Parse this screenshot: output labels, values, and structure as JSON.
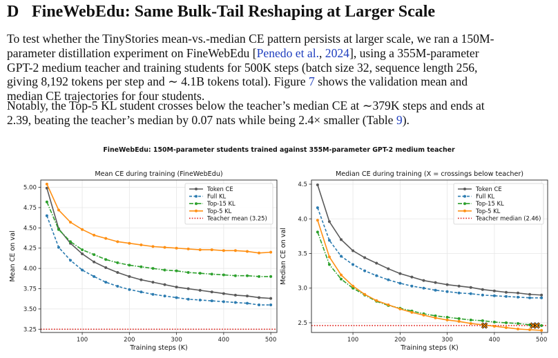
{
  "section": {
    "number": "D",
    "title": "FineWebEdu: Same Bulk-Tail Reshaping at Larger Scale"
  },
  "paragraph1": {
    "l1": "To test whether the TinyStories mean-vs.-median CE pattern persists at larger scale, we ran a 150M-",
    "l2a": "parameter distillation experiment on FineWebEdu [",
    "cite_author": "Penedo et al.",
    "l2b": ", ",
    "cite_year": "2024",
    "l2c": "], using a 355M-parameter",
    "l3": "GPT-2 medium teacher and training students for 500K steps (batch size 32, sequence length 256,",
    "l4a": "giving 8,192 tokens per step and ∼ 4.1B tokens total).  Figure ",
    "fig_ref": "7",
    "l4b": " shows the validation mean and",
    "l5": "median CE trajectories for four students."
  },
  "paragraph2": {
    "l1": "Notably, the Top-5 KL student crosses below the teacher’s median CE at ∼379K steps and ends at",
    "l2a": "2.39, beating the teacher’s median by 0.07 nats while being 2.4× smaller (Table ",
    "table_ref": "9",
    "l2b": ")."
  },
  "figure": {
    "suptitle": "FineWebEdu: 150M-parameter students trained against 355M-parameter GPT-2 medium teacher"
  },
  "colors": {
    "token": "#595959",
    "full": "#2b7bb0",
    "top15": "#2ca02c",
    "top5": "#ff9014",
    "teacher": "#e0201b",
    "grid": "#e6e6e6",
    "crossing_marker": "#ff8c00"
  },
  "chart_data": [
    {
      "type": "line",
      "title": "Mean CE during training (FineWebEdu)",
      "xlabel": "Training steps (K)",
      "ylabel": "Mean CE on val",
      "xlim": [
        12,
        513
      ],
      "ylim": [
        3.21,
        5.09
      ],
      "xticks": [
        100,
        200,
        300,
        400,
        500
      ],
      "yticks": [
        3.25,
        3.5,
        3.75,
        4.0,
        4.25,
        4.5,
        4.75,
        5.0
      ],
      "ytick_decimals": 2,
      "grid": true,
      "legend_position": "top-right",
      "x": [
        25,
        50,
        75,
        100,
        125,
        150,
        175,
        200,
        225,
        250,
        275,
        300,
        325,
        350,
        375,
        400,
        425,
        450,
        475,
        500
      ],
      "series": [
        {
          "name": "Token CE",
          "color_key": "token",
          "style": "solid",
          "marker": "circle",
          "values": [
            4.99,
            4.49,
            4.31,
            4.18,
            4.08,
            4.01,
            3.95,
            3.9,
            3.86,
            3.83,
            3.8,
            3.77,
            3.75,
            3.73,
            3.71,
            3.69,
            3.67,
            3.66,
            3.64,
            3.63
          ]
        },
        {
          "name": "Full KL",
          "color_key": "full",
          "style": "dashed",
          "marker": "circle",
          "values": [
            4.65,
            4.26,
            4.1,
            3.98,
            3.9,
            3.83,
            3.78,
            3.74,
            3.71,
            3.68,
            3.66,
            3.64,
            3.62,
            3.61,
            3.6,
            3.59,
            3.58,
            3.57,
            3.55,
            3.55
          ]
        },
        {
          "name": "Top-15 KL",
          "color_key": "top15",
          "style": "dashdot",
          "marker": "circle",
          "values": [
            4.82,
            4.48,
            4.33,
            4.23,
            4.17,
            4.11,
            4.07,
            4.04,
            4.02,
            4.0,
            3.98,
            3.97,
            3.95,
            3.94,
            3.93,
            3.92,
            3.91,
            3.91,
            3.9,
            3.9
          ]
        },
        {
          "name": "Top-5 KL",
          "color_key": "top5",
          "style": "solid",
          "marker": "circle",
          "values": [
            5.04,
            4.72,
            4.57,
            4.48,
            4.41,
            4.37,
            4.33,
            4.31,
            4.29,
            4.27,
            4.26,
            4.25,
            4.24,
            4.23,
            4.23,
            4.22,
            4.22,
            4.21,
            4.19,
            4.2
          ]
        }
      ],
      "reference_line": {
        "name": "Teacher mean (3.25)",
        "y": 3.25,
        "color_key": "teacher",
        "style": "dotted"
      }
    },
    {
      "type": "line",
      "title": "Median CE during training (X = crossings below teacher)",
      "xlabel": "Training steps (K)",
      "ylabel": "Median CE on val",
      "xlim": [
        12,
        513
      ],
      "ylim": [
        2.36,
        4.56
      ],
      "xticks": [
        100,
        200,
        300,
        400,
        500
      ],
      "yticks": [
        2.5,
        3.0,
        3.5,
        4.0,
        4.5
      ],
      "ytick_decimals": 1,
      "grid": true,
      "legend_position": "top-right",
      "x": [
        25,
        50,
        75,
        100,
        125,
        150,
        175,
        200,
        225,
        250,
        275,
        300,
        325,
        350,
        375,
        400,
        425,
        450,
        475,
        500
      ],
      "series": [
        {
          "name": "Token CE",
          "color_key": "token",
          "style": "solid",
          "marker": "circle",
          "values": [
            4.49,
            3.96,
            3.7,
            3.54,
            3.44,
            3.36,
            3.28,
            3.21,
            3.16,
            3.11,
            3.08,
            3.05,
            3.03,
            3.01,
            2.98,
            2.96,
            2.94,
            2.93,
            2.91,
            2.9
          ]
        },
        {
          "name": "Full KL",
          "color_key": "full",
          "style": "dashed",
          "marker": "circle",
          "values": [
            4.16,
            3.69,
            3.46,
            3.34,
            3.25,
            3.18,
            3.12,
            3.07,
            3.03,
            3.0,
            2.97,
            2.95,
            2.93,
            2.92,
            2.9,
            2.89,
            2.88,
            2.87,
            2.86,
            2.86
          ]
        },
        {
          "name": "Top-15 KL",
          "color_key": "top15",
          "style": "dashdot",
          "marker": "circle",
          "values": [
            3.81,
            3.34,
            3.13,
            3.0,
            2.9,
            2.81,
            2.75,
            2.71,
            2.67,
            2.63,
            2.6,
            2.58,
            2.56,
            2.54,
            2.53,
            2.51,
            2.5,
            2.49,
            2.47,
            2.46
          ]
        },
        {
          "name": "Top-5 KL",
          "color_key": "top5",
          "style": "solid",
          "marker": "circle",
          "values": [
            3.98,
            3.45,
            3.19,
            3.03,
            2.91,
            2.82,
            2.76,
            2.7,
            2.65,
            2.61,
            2.57,
            2.54,
            2.52,
            2.49,
            2.47,
            2.45,
            2.43,
            2.41,
            2.4,
            2.39
          ]
        }
      ],
      "reference_line": {
        "name": "Teacher median (2.46)",
        "y": 2.46,
        "color_key": "teacher",
        "style": "dotted"
      },
      "crossings": [
        {
          "x": 379,
          "y": 2.46,
          "series": "Top-5 KL"
        },
        {
          "x": 482,
          "y": 2.46,
          "series": "Top-15 KL"
        },
        {
          "x": 490,
          "y": 2.46,
          "series": "Top-15 KL"
        }
      ]
    }
  ]
}
